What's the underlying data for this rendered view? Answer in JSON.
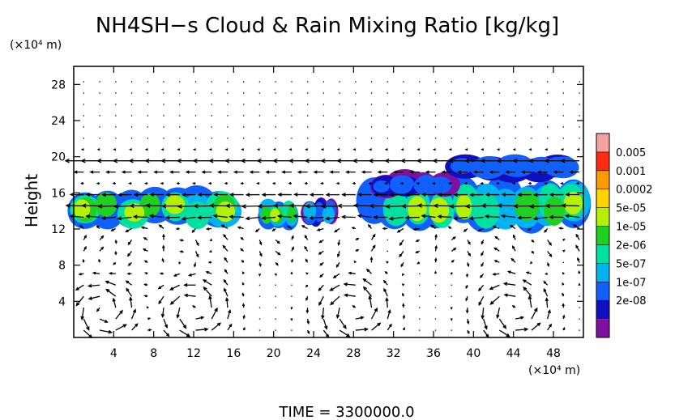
{
  "chart_data": {
    "type": "heatmap",
    "title": "NH4SH−s Cloud & Rain Mixing Ratio [kg/kg]",
    "ylabel": "Height",
    "y_unit": "(×10⁴ m)",
    "x_unit": "(×10⁴ m)",
    "time_label": "TIME  =  3300000.0",
    "xlim": [
      0,
      51
    ],
    "ylim": [
      0,
      30
    ],
    "x_ticks": [
      "4",
      "8",
      "12",
      "16",
      "20",
      "24",
      "28",
      "32",
      "36",
      "40",
      "44",
      "48"
    ],
    "y_ticks": [
      "4",
      "8",
      "12",
      "16",
      "20",
      "24",
      "28"
    ],
    "colorbar": {
      "labels": [
        "0.005",
        "0.001",
        "0.0002",
        "5e-05",
        "1e-05",
        "2e-06",
        "5e-07",
        "1e-07",
        "2e-08"
      ],
      "colors": [
        "#f4a3a3",
        "#ff2a10",
        "#ff9a00",
        "#ffd400",
        "#b4f000",
        "#20d020",
        "#00e0a0",
        "#00b4f0",
        "#1060ff",
        "#1010c0",
        "#8010a0"
      ]
    },
    "cloud_regions": [
      {
        "x": [
          0,
          16
        ],
        "y": [
          12.4,
          16.0
        ],
        "peak_level": 4
      },
      {
        "x": [
          19,
          22
        ],
        "y": [
          12.6,
          15.0
        ],
        "peak_level": 4
      },
      {
        "x": [
          23.5,
          26
        ],
        "y": [
          12.8,
          15.2
        ],
        "peak_level": 6
      },
      {
        "x": [
          29,
          51
        ],
        "y": [
          12.4,
          17.0
        ],
        "peak_level": 4
      },
      {
        "x": [
          30,
          38
        ],
        "y": [
          16.0,
          18.2
        ],
        "peak_level": 10
      },
      {
        "x": [
          38,
          50
        ],
        "y": [
          17.8,
          20.0
        ],
        "peak_level": 9
      }
    ],
    "wind_field": "arrows: strong westward flow near y=15 and y=19 km, circulation cells near y=3 at x=12 and x=44"
  }
}
